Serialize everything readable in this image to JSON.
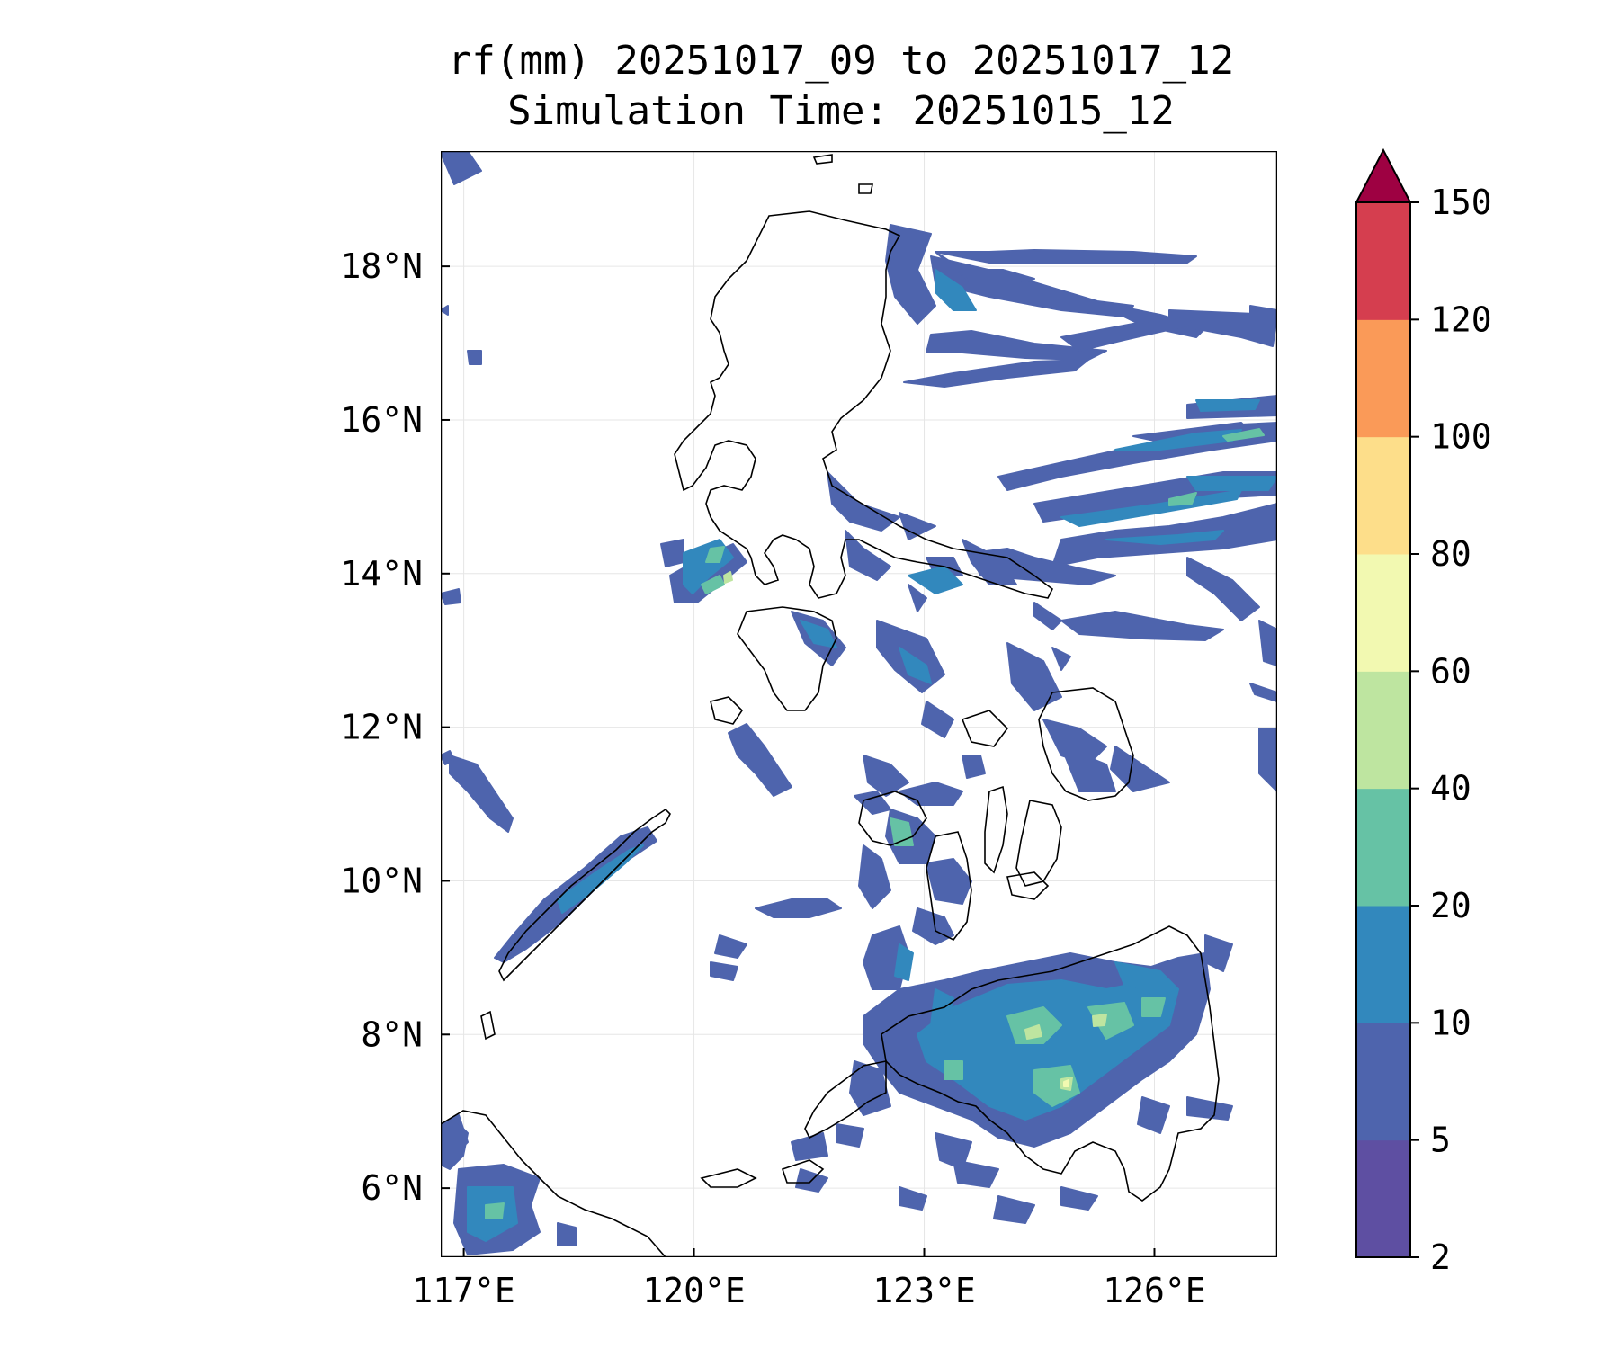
{
  "title": {
    "line1": "rf(mm) 20251017_09 to 20251017_12",
    "line2": "Simulation Time: 20251015_12"
  },
  "map": {
    "lon_range": [
      116.7,
      127.6
    ],
    "lat_range": [
      5.1,
      19.5
    ],
    "lon_ticks": [
      {
        "value": 117,
        "label": "117°E"
      },
      {
        "value": 120,
        "label": "120°E"
      },
      {
        "value": 123,
        "label": "123°E"
      },
      {
        "value": 126,
        "label": "126°E"
      }
    ],
    "lat_ticks": [
      {
        "value": 6,
        "label": "6°N"
      },
      {
        "value": 8,
        "label": "8°N"
      },
      {
        "value": 10,
        "label": "10°N"
      },
      {
        "value": 12,
        "label": "12°N"
      },
      {
        "value": 14,
        "label": "14°N"
      },
      {
        "value": 16,
        "label": "16°N"
      },
      {
        "value": 18,
        "label": "18°N"
      }
    ],
    "grid": true
  },
  "colorbar": {
    "levels": [
      {
        "label": "2",
        "color": "#5e4fa2"
      },
      {
        "label": "5",
        "color": "#4e64ad"
      },
      {
        "label": "10",
        "color": "#3288bd"
      },
      {
        "label": "20",
        "color": "#66c2a5"
      },
      {
        "label": "40",
        "color": "#bee5a0"
      },
      {
        "label": "60",
        "color": "#f2f9b1"
      },
      {
        "label": "80",
        "color": "#fdde8a"
      },
      {
        "label": "100",
        "color": "#fa9a58"
      },
      {
        "label": "120",
        "color": "#d53e4f"
      },
      {
        "label": "150",
        "color": "#9e0142"
      }
    ],
    "extend": "max"
  },
  "rain_colors": {
    "c2": "#5e4fa2",
    "c5": "#4e64ad",
    "c10": "#3288bd",
    "c20": "#66c2a5",
    "c40": "#bee5a0",
    "c60": "#f2f9b1"
  }
}
